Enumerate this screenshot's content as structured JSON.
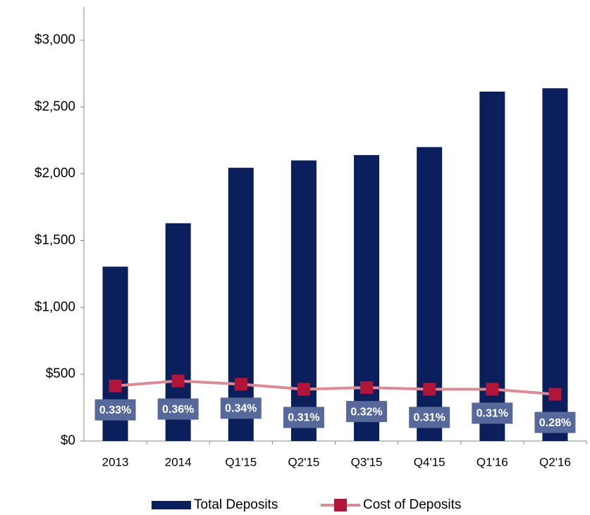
{
  "chart_data": {
    "type": "bar_line",
    "categories": [
      "2013",
      "2014",
      "Q1'15",
      "Q2'15",
      "Q3'15",
      "Q4'15",
      "Q1'16",
      "Q2'16"
    ],
    "series": [
      {
        "name": "Total Deposits",
        "type": "bar",
        "color": "#0b1f5c",
        "values": [
          1305,
          1630,
          2045,
          2100,
          2140,
          2200,
          2615,
          2640
        ]
      },
      {
        "name": "Cost of Deposits",
        "type": "line",
        "axis": "y2",
        "color": "#d98b96",
        "marker_color": "#b0163a",
        "values": [
          0.33,
          0.36,
          0.34,
          0.31,
          0.32,
          0.31,
          0.31,
          0.28
        ],
        "value_labels": [
          "0.33%",
          "0.36%",
          "0.34%",
          "0.31%",
          "0.32%",
          "0.31%",
          "0.31%",
          "0.28%"
        ]
      }
    ],
    "ylim": [
      0,
      3000
    ],
    "yticks": [
      {
        "value": 0,
        "label": "$0"
      },
      {
        "value": 500,
        "label": "$500"
      },
      {
        "value": 1000,
        "label": "$1,000"
      },
      {
        "value": 1500,
        "label": "$1,500"
      },
      {
        "value": 2000,
        "label": "$2,000"
      },
      {
        "value": 2500,
        "label": "$2,500"
      },
      {
        "value": 3000,
        "label": "$3,000"
      }
    ],
    "y2lim": [
      0,
      2.4
    ],
    "legend": "bottom"
  }
}
